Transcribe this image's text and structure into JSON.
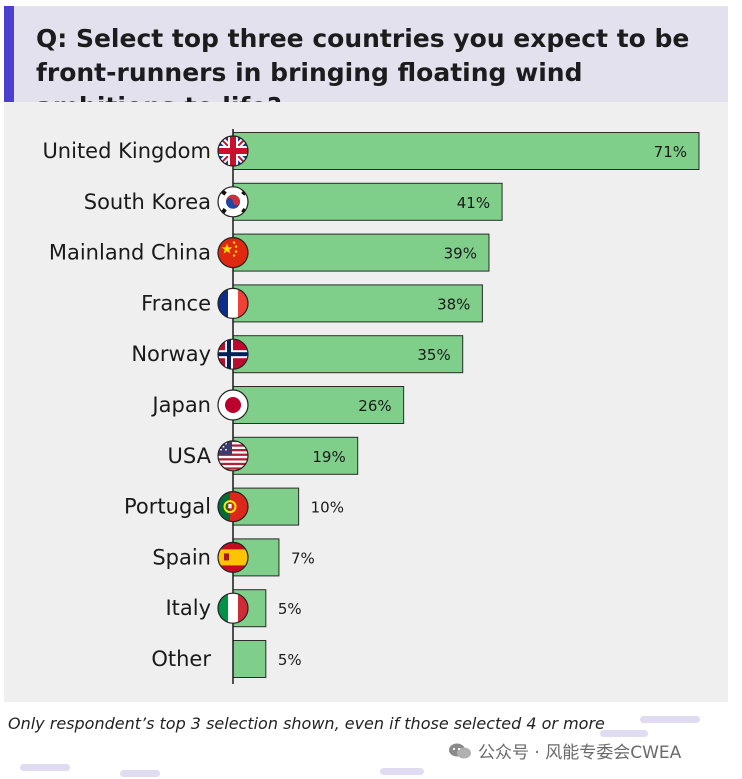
{
  "title": "Q: Select top three countries you expect to be front-runners in bringing floating wind ambitions to life?",
  "footnote": "Only respondent’s top 3 selection shown, even if those selected 4 or more",
  "watermark": "公众号 · 风能专委会CWEA",
  "colors": {
    "bar": "#7fce8a",
    "bar_stroke": "#2b2b2b",
    "title_accent": "#4b3fd0",
    "title_bg": "#e4e1ee",
    "panel_bg": "#efefef"
  },
  "chart_data": {
    "type": "bar",
    "orientation": "horizontal",
    "categories": [
      "United Kingdom",
      "South Korea",
      "Mainland China",
      "France",
      "Norway",
      "Japan",
      "USA",
      "Portugal",
      "Spain",
      "Italy",
      "Other"
    ],
    "values": [
      71,
      41,
      39,
      38,
      35,
      26,
      19,
      10,
      7,
      5,
      5
    ],
    "value_labels": [
      "71%",
      "41%",
      "39%",
      "38%",
      "35%",
      "26%",
      "19%",
      "10%",
      "7%",
      "5%",
      "5%"
    ],
    "flags": [
      "uk-flag-icon",
      "south-korea-flag-icon",
      "china-flag-icon",
      "france-flag-icon",
      "norway-flag-icon",
      "japan-flag-icon",
      "usa-flag-icon",
      "portugal-flag-icon",
      "spain-flag-icon",
      "italy-flag-icon",
      ""
    ],
    "unit": "%",
    "xlim": [
      0,
      71
    ],
    "grid": false,
    "legend": "none"
  }
}
